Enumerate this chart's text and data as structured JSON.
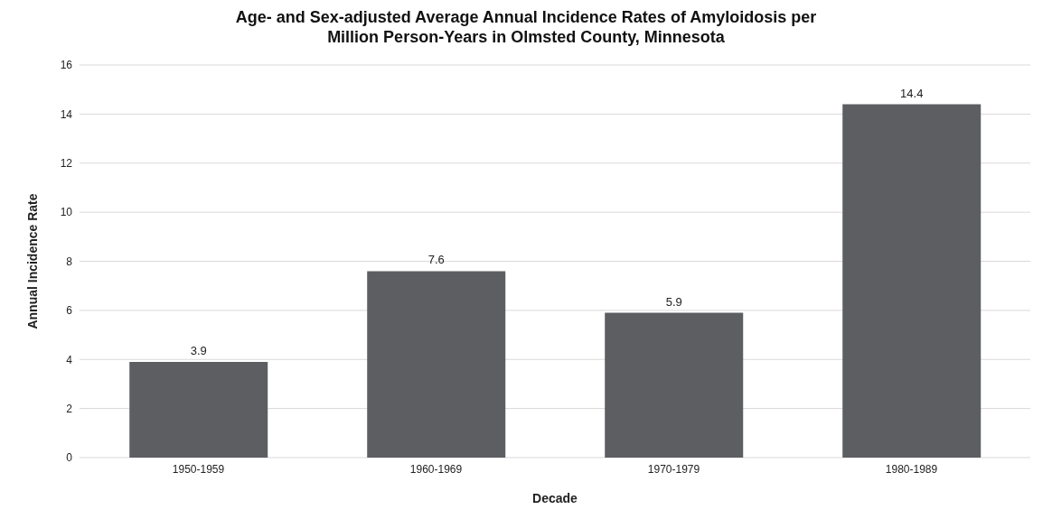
{
  "chart_data": {
    "type": "bar",
    "title": "Age- and Sex-adjusted Average Annual Incidence Rates of Amyloidosis per Million Person-Years in Olmsted County, Minnesota",
    "xlabel": "Decade",
    "ylabel": "Annual Incidence Rate",
    "categories": [
      "1950-1959",
      "1960-1969",
      "1970-1979",
      "1980-1989"
    ],
    "values": [
      3.9,
      7.6,
      5.9,
      14.4
    ],
    "color": "#5d5e62",
    "ylim": [
      0,
      16
    ],
    "yticks": [
      0,
      2,
      4,
      6,
      8,
      10,
      12,
      14,
      16
    ],
    "grid": "y",
    "data_labels": true
  }
}
